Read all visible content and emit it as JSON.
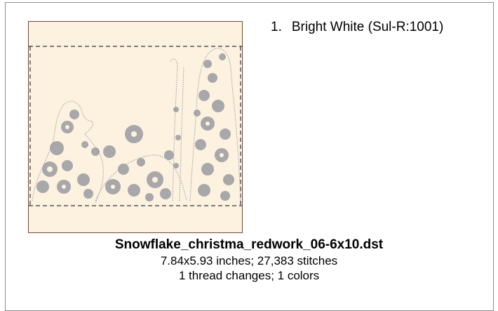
{
  "design": {
    "filename": "Snowflake_christma_redwork_06-6x10.dst",
    "dimensions_line": "7.84x5.93 inches; 27,383 stitches",
    "changes_line": "1 thread changes; 1 colors"
  },
  "threads": [
    {
      "number": "1.",
      "name": "Bright White (Sul-R:1001)"
    }
  ],
  "colors": {
    "fabric": "#fdf2e0",
    "frame_border": "#6b4a35",
    "stitch": "#9a9aa0",
    "hoop_dash": "#333333"
  },
  "icons": {
    "preview": "embroidery-design-preview"
  }
}
